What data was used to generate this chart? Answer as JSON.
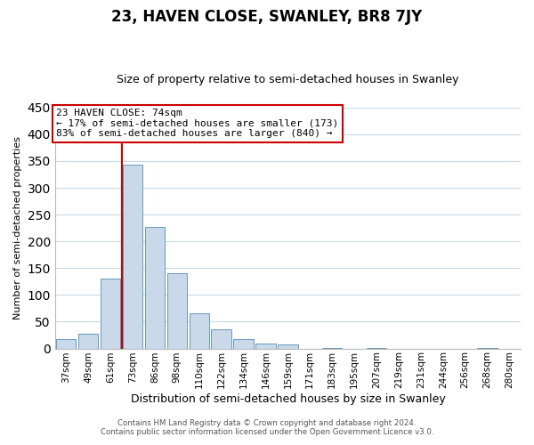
{
  "title": "23, HAVEN CLOSE, SWANLEY, BR8 7JY",
  "subtitle": "Size of property relative to semi-detached houses in Swanley",
  "xlabel": "Distribution of semi-detached houses by size in Swanley",
  "ylabel": "Number of semi-detached properties",
  "bin_labels": [
    "37sqm",
    "49sqm",
    "61sqm",
    "73sqm",
    "86sqm",
    "98sqm",
    "110sqm",
    "122sqm",
    "134sqm",
    "146sqm",
    "159sqm",
    "171sqm",
    "183sqm",
    "195sqm",
    "207sqm",
    "219sqm",
    "231sqm",
    "244sqm",
    "256sqm",
    "268sqm",
    "280sqm"
  ],
  "bar_values": [
    18,
    28,
    130,
    343,
    227,
    141,
    65,
    35,
    18,
    9,
    8,
    0,
    1,
    0,
    1,
    0,
    0,
    0,
    0,
    1,
    0
  ],
  "bar_color": "#c9d9e9",
  "bar_edge_color": "#6699bb",
  "property_line_color": "#cc0000",
  "annotation_line1": "23 HAVEN CLOSE: 74sqm",
  "annotation_line2": "← 17% of semi-detached houses are smaller (173)",
  "annotation_line3": "83% of semi-detached houses are larger (840) →",
  "annotation_box_color": "#ffffff",
  "annotation_box_edge": "#cc0000",
  "ylim": [
    0,
    450
  ],
  "yticks": [
    0,
    50,
    100,
    150,
    200,
    250,
    300,
    350,
    400,
    450
  ],
  "footer_line1": "Contains HM Land Registry data © Crown copyright and database right 2024.",
  "footer_line2": "Contains public sector information licensed under the Open Government Licence v3.0.",
  "background_color": "#ffffff",
  "grid_color": "#c8d8e8",
  "title_fontsize": 12,
  "subtitle_fontsize": 9,
  "ylabel_fontsize": 8,
  "xlabel_fontsize": 9
}
